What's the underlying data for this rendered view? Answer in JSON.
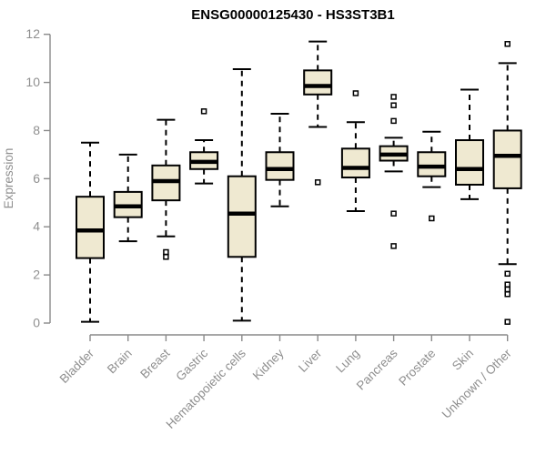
{
  "colors": {
    "background": "#ffffff",
    "box_fill": "#efe9d1",
    "box_border": "#000000",
    "median": "#000000",
    "whisker": "#000000",
    "outlier_stroke": "#000000",
    "outlier_fill": "#ffffff",
    "axis": "#8a8a8a",
    "tick_text": "#8f8f8f",
    "title_text": "#000000"
  },
  "chart_data": {
    "type": "boxplot",
    "title": "ENSG00000125430 - HS3ST3B1",
    "xlabel": "",
    "ylabel": "Expression",
    "ylim": [
      0,
      12
    ],
    "yticks": [
      0,
      2,
      4,
      6,
      8,
      10,
      12
    ],
    "grid": false,
    "legend": "none",
    "categories": [
      "Bladder",
      "Brain",
      "Breast",
      "Gastric",
      "Hematopoietic cells",
      "Kidney",
      "Liver",
      "Lung",
      "Pancreas",
      "Prostate",
      "Skin",
      "Unknown / Other"
    ],
    "boxes": [
      {
        "category": "Bladder",
        "whisker_low": 0.05,
        "q1": 2.7,
        "median": 3.85,
        "q3": 5.25,
        "whisker_high": 7.5,
        "outliers": []
      },
      {
        "category": "Brain",
        "whisker_low": 3.4,
        "q1": 4.4,
        "median": 4.85,
        "q3": 5.45,
        "whisker_high": 7.0,
        "outliers": []
      },
      {
        "category": "Breast",
        "whisker_low": 3.6,
        "q1": 5.1,
        "median": 5.9,
        "q3": 6.55,
        "whisker_high": 8.45,
        "outliers": [
          2.95,
          2.75
        ]
      },
      {
        "category": "Gastric",
        "whisker_low": 5.8,
        "q1": 6.4,
        "median": 6.7,
        "q3": 7.1,
        "whisker_high": 7.6,
        "outliers": [
          8.8
        ]
      },
      {
        "category": "Hematopoietic cells",
        "whisker_low": 0.1,
        "q1": 2.75,
        "median": 4.55,
        "q3": 6.1,
        "whisker_high": 10.55,
        "outliers": []
      },
      {
        "category": "Kidney",
        "whisker_low": 4.85,
        "q1": 5.95,
        "median": 6.4,
        "q3": 7.1,
        "whisker_high": 8.7,
        "outliers": []
      },
      {
        "category": "Liver",
        "whisker_low": 8.15,
        "q1": 9.5,
        "median": 9.85,
        "q3": 10.5,
        "whisker_high": 11.7,
        "outliers": [
          5.85
        ]
      },
      {
        "category": "Lung",
        "whisker_low": 4.65,
        "q1": 6.05,
        "median": 6.45,
        "q3": 7.25,
        "whisker_high": 8.35,
        "outliers": [
          9.55
        ]
      },
      {
        "category": "Pancreas",
        "whisker_low": 6.3,
        "q1": 6.75,
        "median": 7.0,
        "q3": 7.35,
        "whisker_high": 7.7,
        "outliers": [
          9.4,
          9.05,
          8.4,
          4.55,
          3.2
        ]
      },
      {
        "category": "Prostate",
        "whisker_low": 5.65,
        "q1": 6.1,
        "median": 6.5,
        "q3": 7.1,
        "whisker_high": 7.95,
        "outliers": [
          4.35
        ]
      },
      {
        "category": "Skin",
        "whisker_low": 5.15,
        "q1": 5.75,
        "median": 6.4,
        "q3": 7.6,
        "whisker_high": 9.7,
        "outliers": []
      },
      {
        "category": "Unknown / Other",
        "whisker_low": 2.45,
        "q1": 5.6,
        "median": 6.95,
        "q3": 8.0,
        "whisker_high": 10.8,
        "outliers": [
          11.6,
          2.05,
          1.6,
          1.4,
          1.2,
          0.05
        ]
      }
    ]
  }
}
